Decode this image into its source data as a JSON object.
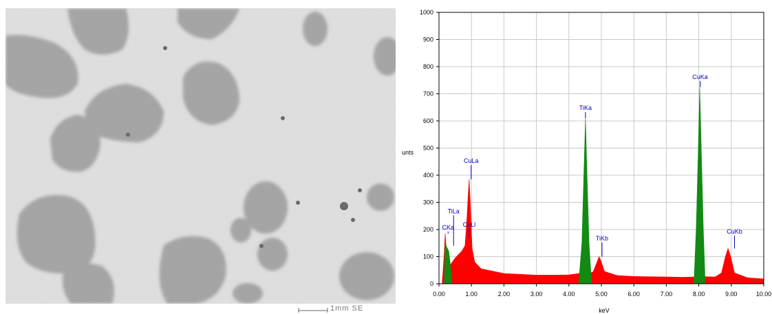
{
  "micrograph": {
    "scale_label": "1mm SE"
  },
  "chart_data": {
    "type": "area",
    "xlabel": "keV",
    "ylabel": "unts",
    "xlim": [
      0,
      10
    ],
    "ylim": [
      0,
      1000
    ],
    "x_ticks": [
      "0.00",
      "1.00",
      "2.00",
      "3.00",
      "4.00",
      "5.00",
      "6.00",
      "7.00",
      "8.00",
      "9.00",
      "10.00"
    ],
    "y_ticks": [
      "0",
      "100",
      "200",
      "300",
      "400",
      "500",
      "600",
      "700",
      "800",
      "900",
      "1000"
    ],
    "grid": true,
    "series": [
      {
        "name": "",
        "color": "#ff0000",
        "points": [
          [
            0.1,
            5
          ],
          [
            0.15,
            90
          ],
          [
            0.19,
            185
          ],
          [
            0.23,
            120
          ],
          [
            0.35,
            70
          ],
          [
            0.5,
            95
          ],
          [
            0.7,
            120
          ],
          [
            0.8,
            140
          ],
          [
            0.86,
            240
          ],
          [
            0.9,
            330
          ],
          [
            0.93,
            385
          ],
          [
            0.97,
            280
          ],
          [
            1.02,
            130
          ],
          [
            1.1,
            80
          ],
          [
            1.3,
            55
          ],
          [
            1.6,
            48
          ],
          [
            2.0,
            38
          ],
          [
            2.5,
            35
          ],
          [
            3.0,
            32
          ],
          [
            3.5,
            32
          ],
          [
            4.0,
            33
          ],
          [
            4.3,
            38
          ],
          [
            4.6,
            35
          ],
          [
            4.75,
            45
          ],
          [
            4.85,
            75
          ],
          [
            4.93,
            100
          ],
          [
            5.0,
            80
          ],
          [
            5.1,
            45
          ],
          [
            5.5,
            30
          ],
          [
            6.0,
            27
          ],
          [
            6.5,
            26
          ],
          [
            7.0,
            25
          ],
          [
            7.5,
            24
          ],
          [
            7.9,
            25
          ],
          [
            8.2,
            26
          ],
          [
            8.5,
            25
          ],
          [
            8.7,
            40
          ],
          [
            8.82,
            100
          ],
          [
            8.9,
            130
          ],
          [
            8.98,
            100
          ],
          [
            9.1,
            40
          ],
          [
            9.5,
            22
          ],
          [
            10.0,
            18
          ]
        ]
      },
      {
        "name": "",
        "color": "#138a13",
        "points": [
          [
            0.16,
            0
          ],
          [
            0.19,
            155
          ],
          [
            0.22,
            140
          ],
          [
            0.3,
            120
          ],
          [
            0.36,
            60
          ],
          [
            0.4,
            0
          ]
        ]
      },
      {
        "name": "",
        "color": "#138a13",
        "points": [
          [
            4.3,
            0
          ],
          [
            4.4,
            150
          ],
          [
            4.46,
            400
          ],
          [
            4.51,
            610
          ],
          [
            4.56,
            400
          ],
          [
            4.62,
            150
          ],
          [
            4.7,
            0
          ]
        ]
      },
      {
        "name": "",
        "color": "#138a13",
        "points": [
          [
            7.85,
            0
          ],
          [
            7.92,
            200
          ],
          [
            7.98,
            480
          ],
          [
            8.03,
            725
          ],
          [
            8.08,
            480
          ],
          [
            8.14,
            200
          ],
          [
            8.2,
            0
          ]
        ]
      }
    ],
    "annotations": [
      {
        "label": "CKa",
        "x": 0.28,
        "y": 200,
        "line_to": 185
      },
      {
        "label": "TiLa",
        "x": 0.45,
        "y": 260,
        "line_to": 140
      },
      {
        "label": "CuLl",
        "x": 0.93,
        "y": 210,
        "line_to": 170
      },
      {
        "label": "CuLa",
        "x": 0.99,
        "y": 445,
        "line_to": 385
      },
      {
        "label": "TiKa",
        "x": 4.51,
        "y": 640,
        "line_to": 610
      },
      {
        "label": "TiKb",
        "x": 5.02,
        "y": 160,
        "line_to": 100
      },
      {
        "label": "CuKa",
        "x": 8.04,
        "y": 755,
        "line_to": 725
      },
      {
        "label": "CuKb",
        "x": 9.1,
        "y": 185,
        "line_to": 130
      }
    ]
  }
}
